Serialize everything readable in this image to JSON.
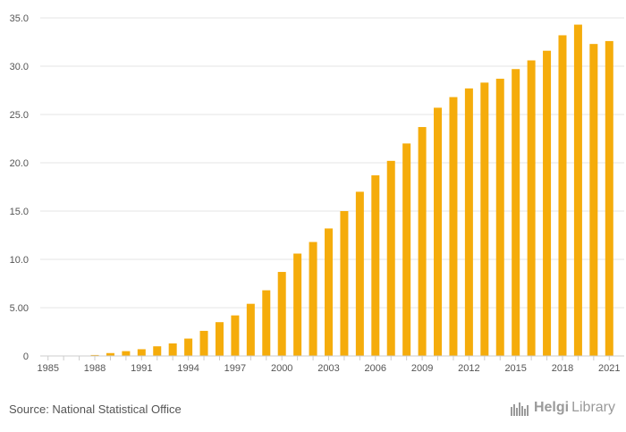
{
  "chart_data": {
    "type": "bar",
    "title": "",
    "xlabel": "",
    "ylabel": "",
    "ylim": [
      0,
      35
    ],
    "yticks": [
      0,
      5,
      10,
      15,
      20,
      25,
      30,
      35
    ],
    "ytick_labels": [
      "0",
      "5.00",
      "10.0",
      "15.0",
      "20.0",
      "25.0",
      "30.0",
      "35.0"
    ],
    "xtick_labels": [
      "1985",
      "1988",
      "1991",
      "1994",
      "1997",
      "2000",
      "2003",
      "2006",
      "2009",
      "2012",
      "2015",
      "2018",
      "2021"
    ],
    "categories": [
      "1985",
      "1986",
      "1987",
      "1988",
      "1989",
      "1990",
      "1991",
      "1992",
      "1993",
      "1994",
      "1995",
      "1996",
      "1997",
      "1998",
      "1999",
      "2000",
      "2001",
      "2002",
      "2003",
      "2004",
      "2005",
      "2006",
      "2007",
      "2008",
      "2009",
      "2010",
      "2011",
      "2012",
      "2013",
      "2014",
      "2015",
      "2016",
      "2017",
      "2018",
      "2019",
      "2020",
      "2021"
    ],
    "values": [
      0,
      0,
      0,
      0.1,
      0.3,
      0.5,
      0.7,
      1.0,
      1.3,
      1.8,
      2.6,
      3.5,
      4.2,
      5.4,
      6.8,
      8.7,
      10.6,
      11.8,
      13.2,
      15.0,
      17.0,
      18.7,
      20.2,
      22.0,
      23.7,
      25.7,
      26.8,
      27.7,
      28.3,
      28.7,
      29.7,
      30.6,
      31.6,
      33.2,
      34.3,
      32.3,
      32.6
    ],
    "bar_color": "#f5ac0b",
    "grid": true
  },
  "footer": {
    "source": "Source: National Statistical Office",
    "logo_strong": "Helgi",
    "logo_light": "Library",
    "logo_color": "#9a9a9a"
  }
}
